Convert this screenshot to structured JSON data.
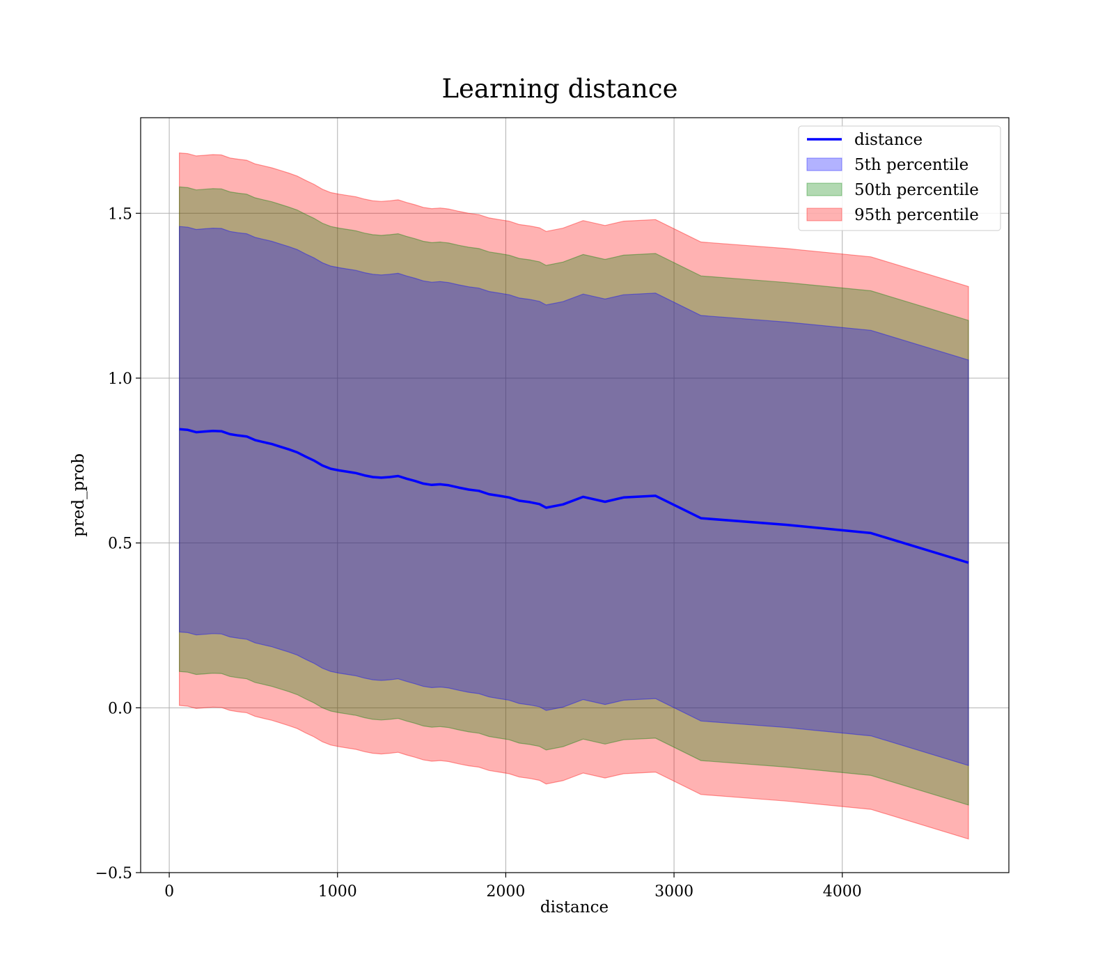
{
  "chart_data": {
    "type": "area",
    "title": "Learning distance",
    "xlabel": "distance",
    "ylabel": "pred_prob",
    "xlim": [
      -170,
      4990
    ],
    "ylim": [
      -0.5,
      1.79
    ],
    "xticks": [
      0,
      1000,
      2000,
      3000,
      4000
    ],
    "xtick_labels": [
      "0",
      "1000",
      "2000",
      "3000",
      "4000"
    ],
    "yticks": [
      -0.5,
      0.0,
      0.5,
      1.0,
      1.5
    ],
    "ytick_labels": [
      "−0.5",
      "0.0",
      "0.5",
      "1.0",
      "1.5"
    ],
    "grid": true,
    "legend_position": "top-right",
    "x": [
      60,
      110,
      160,
      210,
      260,
      310,
      360,
      410,
      460,
      510,
      560,
      610,
      660,
      710,
      760,
      810,
      860,
      910,
      960,
      1010,
      1060,
      1110,
      1160,
      1210,
      1260,
      1310,
      1360,
      1410,
      1460,
      1510,
      1560,
      1610,
      1660,
      1720,
      1780,
      1840,
      1900,
      1960,
      2020,
      2080,
      2140,
      2200,
      2240,
      2340,
      2460,
      2590,
      2700,
      2890,
      3160,
      3670,
      4170,
      4750
    ],
    "line": {
      "name": "distance",
      "color": "#0000ff",
      "values": [
        0.845,
        0.843,
        0.836,
        0.838,
        0.84,
        0.839,
        0.83,
        0.826,
        0.823,
        0.812,
        0.806,
        0.8,
        0.792,
        0.784,
        0.775,
        0.762,
        0.75,
        0.735,
        0.725,
        0.72,
        0.716,
        0.712,
        0.705,
        0.7,
        0.698,
        0.7,
        0.703,
        0.695,
        0.688,
        0.68,
        0.676,
        0.678,
        0.675,
        0.668,
        0.662,
        0.658,
        0.648,
        0.643,
        0.638,
        0.628,
        0.624,
        0.618,
        0.607,
        0.617,
        0.64,
        0.625,
        0.638,
        0.643,
        0.575,
        0.555,
        0.53,
        0.44
      ]
    },
    "bands": [
      {
        "name": "5th percentile",
        "color": "#0000ff",
        "opacity": 0.3,
        "offset": 0.615
      },
      {
        "name": "50th percentile",
        "color": "#008000",
        "opacity": 0.3,
        "offset": 0.735
      },
      {
        "name": "95th percentile",
        "color": "#ff0000",
        "opacity": 0.3,
        "offset": 0.838
      }
    ]
  }
}
